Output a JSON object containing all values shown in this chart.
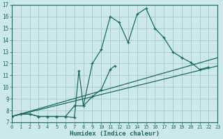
{
  "xlabel": "Humidex (Indice chaleur)",
  "background_color": "#cce8e8",
  "grid_color": "#aacccc",
  "line_color": "#1a6b5a",
  "xlim": [
    0,
    23
  ],
  "ylim": [
    7,
    17
  ],
  "xticks": [
    0,
    1,
    2,
    3,
    4,
    5,
    6,
    7,
    8,
    9,
    10,
    11,
    12,
    13,
    14,
    15,
    16,
    17,
    18,
    19,
    20,
    21,
    22,
    23
  ],
  "yticks": [
    7,
    8,
    9,
    10,
    11,
    12,
    13,
    14,
    15,
    16,
    17
  ],
  "series1_x": [
    0,
    1,
    2,
    3,
    4,
    5,
    6,
    7,
    8,
    9,
    10,
    11,
    12,
    13,
    14,
    15,
    16,
    17,
    18,
    19,
    20,
    21,
    22
  ],
  "series1_y": [
    7.5,
    7.7,
    7.7,
    7.5,
    7.5,
    7.5,
    7.5,
    8.4,
    8.4,
    12.0,
    13.2,
    16.0,
    15.5,
    13.8,
    16.2,
    16.7,
    15.0,
    14.2,
    13.0,
    12.5,
    12.1,
    11.5,
    11.7
  ],
  "series2_x": [
    0,
    1,
    2,
    3,
    4,
    5,
    6,
    7,
    7.5,
    8,
    9,
    10,
    11,
    11.5
  ],
  "series2_y": [
    7.5,
    7.7,
    7.7,
    7.5,
    7.5,
    7.5,
    7.5,
    7.4,
    11.4,
    8.4,
    9.2,
    9.8,
    11.5,
    11.8
  ],
  "line1_x": [
    0,
    23
  ],
  "line1_y": [
    7.5,
    11.8
  ],
  "line2_x": [
    0,
    23
  ],
  "line2_y": [
    7.5,
    12.5
  ]
}
